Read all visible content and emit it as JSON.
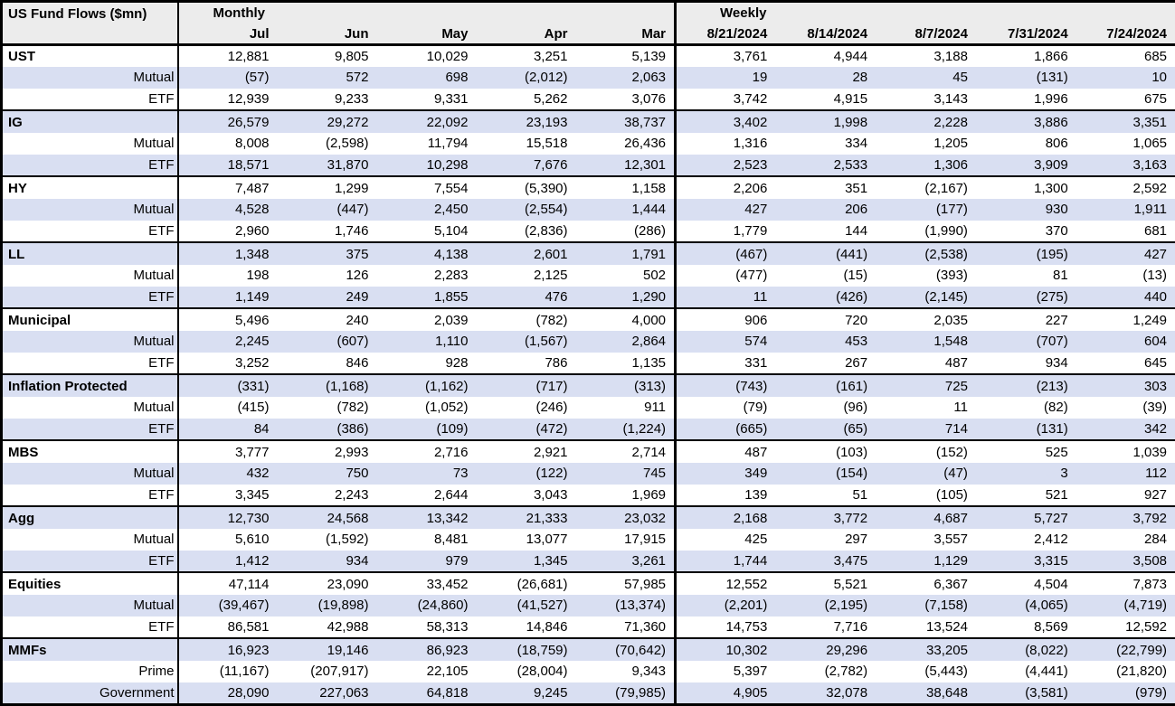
{
  "title": "US Fund Flows ($mn)",
  "monthly_label": "Monthly",
  "weekly_label": "Weekly",
  "monthly_columns": [
    "Jul",
    "Jun",
    "May",
    "Apr",
    "Mar"
  ],
  "weekly_columns": [
    "8/21/2024",
    "8/14/2024",
    "8/7/2024",
    "7/31/2024",
    "7/24/2024"
  ],
  "colors": {
    "stripe_row": "#d9dff2",
    "header_bg": "#ececec",
    "border": "#000000",
    "text": "#000000"
  },
  "groups": [
    {
      "rows": [
        {
          "label": "UST",
          "monthly": [
            "12,881",
            "9,805",
            "10,029",
            "3,251",
            "5,139"
          ],
          "weekly": [
            "3,761",
            "4,944",
            "3,188",
            "1,866",
            "685"
          ]
        },
        {
          "label": "Mutual",
          "monthly": [
            "(57)",
            "572",
            "698",
            "(2,012)",
            "2,063"
          ],
          "weekly": [
            "19",
            "28",
            "45",
            "(131)",
            "10"
          ]
        },
        {
          "label": "ETF",
          "monthly": [
            "12,939",
            "9,233",
            "9,331",
            "5,262",
            "3,076"
          ],
          "weekly": [
            "3,742",
            "4,915",
            "3,143",
            "1,996",
            "675"
          ]
        }
      ]
    },
    {
      "rows": [
        {
          "label": "IG",
          "monthly": [
            "26,579",
            "29,272",
            "22,092",
            "23,193",
            "38,737"
          ],
          "weekly": [
            "3,402",
            "1,998",
            "2,228",
            "3,886",
            "3,351"
          ]
        },
        {
          "label": "Mutual",
          "monthly": [
            "8,008",
            "(2,598)",
            "11,794",
            "15,518",
            "26,436"
          ],
          "weekly": [
            "1,316",
            "334",
            "1,205",
            "806",
            "1,065"
          ]
        },
        {
          "label": "ETF",
          "monthly": [
            "18,571",
            "31,870",
            "10,298",
            "7,676",
            "12,301"
          ],
          "weekly": [
            "2,523",
            "2,533",
            "1,306",
            "3,909",
            "3,163"
          ]
        }
      ]
    },
    {
      "rows": [
        {
          "label": "HY",
          "monthly": [
            "7,487",
            "1,299",
            "7,554",
            "(5,390)",
            "1,158"
          ],
          "weekly": [
            "2,206",
            "351",
            "(2,167)",
            "1,300",
            "2,592"
          ]
        },
        {
          "label": "Mutual",
          "monthly": [
            "4,528",
            "(447)",
            "2,450",
            "(2,554)",
            "1,444"
          ],
          "weekly": [
            "427",
            "206",
            "(177)",
            "930",
            "1,911"
          ]
        },
        {
          "label": "ETF",
          "monthly": [
            "2,960",
            "1,746",
            "5,104",
            "(2,836)",
            "(286)"
          ],
          "weekly": [
            "1,779",
            "144",
            "(1,990)",
            "370",
            "681"
          ]
        }
      ]
    },
    {
      "rows": [
        {
          "label": "LL",
          "monthly": [
            "1,348",
            "375",
            "4,138",
            "2,601",
            "1,791"
          ],
          "weekly": [
            "(467)",
            "(441)",
            "(2,538)",
            "(195)",
            "427"
          ]
        },
        {
          "label": "Mutual",
          "monthly": [
            "198",
            "126",
            "2,283",
            "2,125",
            "502"
          ],
          "weekly": [
            "(477)",
            "(15)",
            "(393)",
            "81",
            "(13)"
          ]
        },
        {
          "label": "ETF",
          "monthly": [
            "1,149",
            "249",
            "1,855",
            "476",
            "1,290"
          ],
          "weekly": [
            "11",
            "(426)",
            "(2,145)",
            "(275)",
            "440"
          ]
        }
      ]
    },
    {
      "rows": [
        {
          "label": "Municipal",
          "monthly": [
            "5,496",
            "240",
            "2,039",
            "(782)",
            "4,000"
          ],
          "weekly": [
            "906",
            "720",
            "2,035",
            "227",
            "1,249"
          ]
        },
        {
          "label": "Mutual",
          "monthly": [
            "2,245",
            "(607)",
            "1,110",
            "(1,567)",
            "2,864"
          ],
          "weekly": [
            "574",
            "453",
            "1,548",
            "(707)",
            "604"
          ]
        },
        {
          "label": "ETF",
          "monthly": [
            "3,252",
            "846",
            "928",
            "786",
            "1,135"
          ],
          "weekly": [
            "331",
            "267",
            "487",
            "934",
            "645"
          ]
        }
      ]
    },
    {
      "rows": [
        {
          "label": "Inflation Protected",
          "monthly": [
            "(331)",
            "(1,168)",
            "(1,162)",
            "(717)",
            "(313)"
          ],
          "weekly": [
            "(743)",
            "(161)",
            "725",
            "(213)",
            "303"
          ]
        },
        {
          "label": "Mutual",
          "monthly": [
            "(415)",
            "(782)",
            "(1,052)",
            "(246)",
            "911"
          ],
          "weekly": [
            "(79)",
            "(96)",
            "11",
            "(82)",
            "(39)"
          ]
        },
        {
          "label": "ETF",
          "monthly": [
            "84",
            "(386)",
            "(109)",
            "(472)",
            "(1,224)"
          ],
          "weekly": [
            "(665)",
            "(65)",
            "714",
            "(131)",
            "342"
          ]
        }
      ]
    },
    {
      "rows": [
        {
          "label": "MBS",
          "monthly": [
            "3,777",
            "2,993",
            "2,716",
            "2,921",
            "2,714"
          ],
          "weekly": [
            "487",
            "(103)",
            "(152)",
            "525",
            "1,039"
          ]
        },
        {
          "label": "Mutual",
          "monthly": [
            "432",
            "750",
            "73",
            "(122)",
            "745"
          ],
          "weekly": [
            "349",
            "(154)",
            "(47)",
            "3",
            "112"
          ]
        },
        {
          "label": "ETF",
          "monthly": [
            "3,345",
            "2,243",
            "2,644",
            "3,043",
            "1,969"
          ],
          "weekly": [
            "139",
            "51",
            "(105)",
            "521",
            "927"
          ]
        }
      ]
    },
    {
      "rows": [
        {
          "label": "Agg",
          "monthly": [
            "12,730",
            "24,568",
            "13,342",
            "21,333",
            "23,032"
          ],
          "weekly": [
            "2,168",
            "3,772",
            "4,687",
            "5,727",
            "3,792"
          ]
        },
        {
          "label": "Mutual",
          "monthly": [
            "5,610",
            "(1,592)",
            "8,481",
            "13,077",
            "17,915"
          ],
          "weekly": [
            "425",
            "297",
            "3,557",
            "2,412",
            "284"
          ]
        },
        {
          "label": "ETF",
          "monthly": [
            "1,412",
            "934",
            "979",
            "1,345",
            "3,261"
          ],
          "weekly": [
            "1,744",
            "3,475",
            "1,129",
            "3,315",
            "3,508"
          ]
        }
      ]
    },
    {
      "rows": [
        {
          "label": "Equities",
          "monthly": [
            "47,114",
            "23,090",
            "33,452",
            "(26,681)",
            "57,985"
          ],
          "weekly": [
            "12,552",
            "5,521",
            "6,367",
            "4,504",
            "7,873"
          ]
        },
        {
          "label": "Mutual",
          "monthly": [
            "(39,467)",
            "(19,898)",
            "(24,860)",
            "(41,527)",
            "(13,374)"
          ],
          "weekly": [
            "(2,201)",
            "(2,195)",
            "(7,158)",
            "(4,065)",
            "(4,719)"
          ]
        },
        {
          "label": "ETF",
          "monthly": [
            "86,581",
            "42,988",
            "58,313",
            "14,846",
            "71,360"
          ],
          "weekly": [
            "14,753",
            "7,716",
            "13,524",
            "8,569",
            "12,592"
          ]
        }
      ]
    },
    {
      "rows": [
        {
          "label": "MMFs",
          "monthly": [
            "16,923",
            "19,146",
            "86,923",
            "(18,759)",
            "(70,642)"
          ],
          "weekly": [
            "10,302",
            "29,296",
            "33,205",
            "(8,022)",
            "(22,799)"
          ]
        },
        {
          "label": "Prime",
          "monthly": [
            "(11,167)",
            "(207,917)",
            "22,105",
            "(28,004)",
            "9,343"
          ],
          "weekly": [
            "5,397",
            "(2,782)",
            "(5,443)",
            "(4,441)",
            "(21,820)"
          ]
        },
        {
          "label": "Government",
          "monthly": [
            "28,090",
            "227,063",
            "64,818",
            "9,245",
            "(79,985)"
          ],
          "weekly": [
            "4,905",
            "32,078",
            "38,648",
            "(3,581)",
            "(979)"
          ]
        }
      ]
    }
  ]
}
